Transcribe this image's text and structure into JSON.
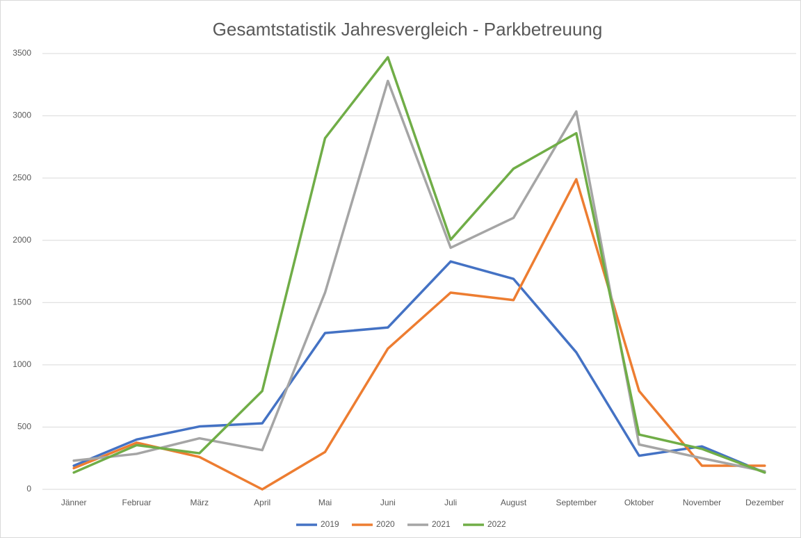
{
  "chart_data": {
    "type": "line",
    "title": "Gesamtstatistik Jahresvergleich - Parkbetreuung",
    "categories": [
      "Jänner",
      "Februar",
      "März",
      "April",
      "Mai",
      "Juni",
      "Juli",
      "August",
      "September",
      "Oktober",
      "November",
      "Dezember"
    ],
    "series": [
      {
        "name": "2019",
        "color": "#4472c4",
        "values": [
          190,
          400,
          505,
          530,
          1255,
          1300,
          1830,
          1690,
          1100,
          270,
          345,
          135
        ]
      },
      {
        "name": "2020",
        "color": "#ed7d31",
        "values": [
          170,
          375,
          260,
          0,
          300,
          1130,
          1580,
          1520,
          2490,
          790,
          190,
          190
        ]
      },
      {
        "name": "2021",
        "color": "#a5a5a5",
        "values": [
          230,
          285,
          410,
          315,
          1580,
          3280,
          1940,
          2180,
          3035,
          360,
          250,
          145
        ]
      },
      {
        "name": "2022",
        "color": "#70ad47",
        "values": [
          135,
          355,
          290,
          790,
          2820,
          3470,
          2005,
          2575,
          2860,
          440,
          325,
          135
        ]
      }
    ],
    "ylim": [
      0,
      3500
    ],
    "yticks": [
      0,
      500,
      1000,
      1500,
      2000,
      2500,
      3000,
      3500
    ],
    "grid": true,
    "legend": "bottom"
  }
}
